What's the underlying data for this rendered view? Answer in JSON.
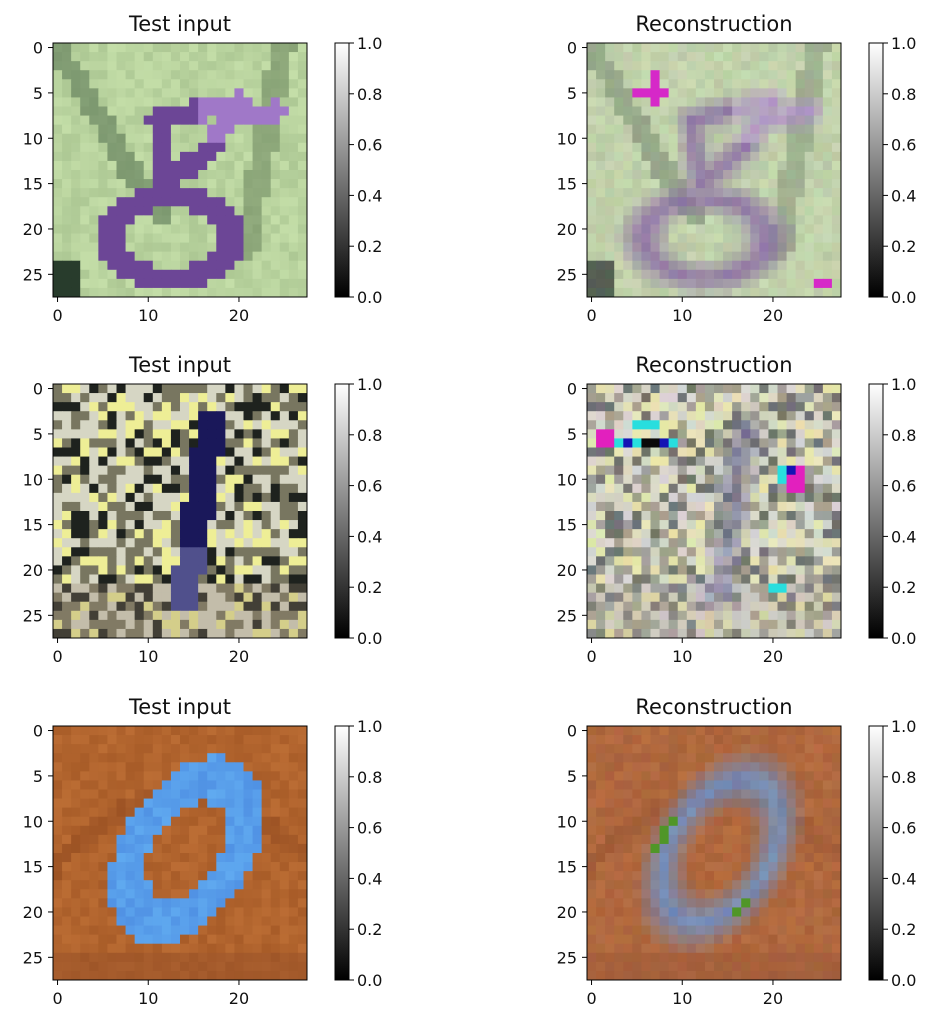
{
  "chart_data": [
    {
      "type": "image",
      "title": "Test input",
      "xlim": [
        0,
        28
      ],
      "ylim": [
        28,
        0
      ],
      "x_ticks": [
        0,
        10,
        20
      ],
      "y_ticks": [
        0,
        5,
        10,
        15,
        20,
        25
      ],
      "content": "purple digit 8 on light green background",
      "colorbar": {
        "range": [
          0.0,
          1.0
        ],
        "ticks": [
          "0.0",
          "0.2",
          "0.4",
          "0.6",
          "0.8",
          "1.0"
        ],
        "cmap": "gray"
      }
    },
    {
      "type": "image",
      "title": "Reconstruction",
      "xlim": [
        0,
        28
      ],
      "ylim": [
        28,
        0
      ],
      "x_ticks": [
        0,
        10,
        20
      ],
      "y_ticks": [
        0,
        5,
        10,
        15,
        20,
        25
      ],
      "content": "blurry purple digit on mottled green background with magenta artifacts",
      "colorbar": {
        "range": [
          0.0,
          1.0
        ],
        "ticks": [
          "0.0",
          "0.2",
          "0.4",
          "0.6",
          "0.8",
          "1.0"
        ],
        "cmap": "gray"
      }
    },
    {
      "type": "image",
      "title": "Test input",
      "xlim": [
        0,
        28
      ],
      "ylim": [
        28,
        0
      ],
      "x_ticks": [
        0,
        10,
        20
      ],
      "y_ticks": [
        0,
        5,
        10,
        15,
        20,
        25
      ],
      "content": "dark blue digit 1 on speckled natural background",
      "colorbar": {
        "range": [
          0.0,
          1.0
        ],
        "ticks": [
          "0.0",
          "0.2",
          "0.4",
          "0.6",
          "0.8",
          "1.0"
        ],
        "cmap": "gray"
      }
    },
    {
      "type": "image",
      "title": "Reconstruction",
      "xlim": [
        0,
        28
      ],
      "ylim": [
        28,
        0
      ],
      "x_ticks": [
        0,
        10,
        20
      ],
      "y_ticks": [
        0,
        5,
        10,
        15,
        20,
        25
      ],
      "content": "blurry dark digit 1 with cyan and magenta artifacts",
      "colorbar": {
        "range": [
          0.0,
          1.0
        ],
        "ticks": [
          "0.0",
          "0.2",
          "0.4",
          "0.6",
          "0.8",
          "1.0"
        ],
        "cmap": "gray"
      }
    },
    {
      "type": "image",
      "title": "Test input",
      "xlim": [
        0,
        28
      ],
      "ylim": [
        28,
        0
      ],
      "x_ticks": [
        0,
        10,
        20
      ],
      "y_ticks": [
        0,
        5,
        10,
        15,
        20,
        25
      ],
      "content": "light blue digit 0 on orange-brown background",
      "colorbar": {
        "range": [
          0.0,
          1.0
        ],
        "ticks": [
          "0.0",
          "0.2",
          "0.4",
          "0.6",
          "0.8",
          "1.0"
        ],
        "cmap": "gray"
      }
    },
    {
      "type": "image",
      "title": "Reconstruction",
      "xlim": [
        0,
        28
      ],
      "ylim": [
        28,
        0
      ],
      "x_ticks": [
        0,
        10,
        20
      ],
      "y_ticks": [
        0,
        5,
        10,
        15,
        20,
        25
      ],
      "content": "blurry light blue digit 0 on orange-brown background with green artifacts",
      "colorbar": {
        "range": [
          0.0,
          1.0
        ],
        "ticks": [
          "0.0",
          "0.2",
          "0.4",
          "0.6",
          "0.8",
          "1.0"
        ],
        "cmap": "gray"
      }
    }
  ]
}
